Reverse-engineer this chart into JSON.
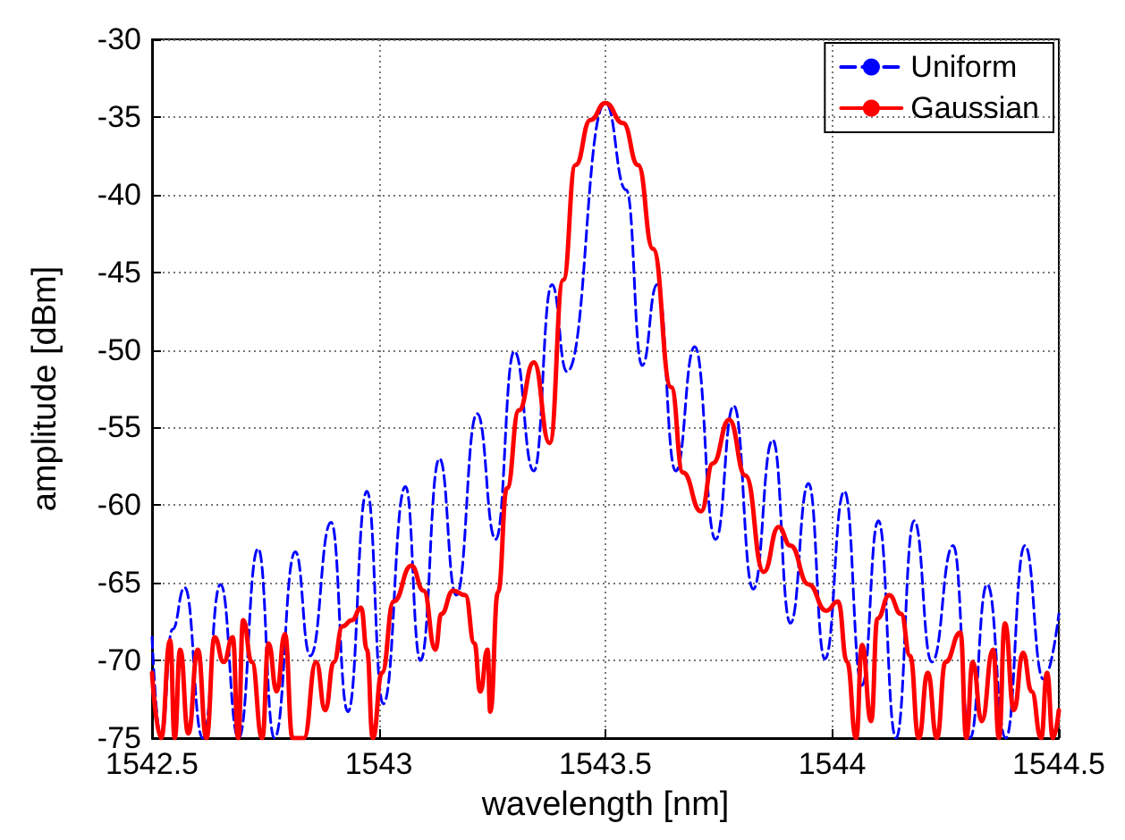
{
  "chart_data": {
    "type": "line",
    "xlabel": "wavelength [nm]",
    "ylabel": "amplitude [dBm]",
    "xlim": [
      1542.5,
      1544.5
    ],
    "xticks": [
      1542.5,
      1543,
      1543.5,
      1544,
      1544.5
    ],
    "ylim": [
      -75,
      -30
    ],
    "yticks": [
      -75,
      -70,
      -65,
      -60,
      -55,
      -50,
      -45,
      -40,
      -35,
      -30
    ],
    "grid": true,
    "legend": "top right",
    "marker": "none",
    "series": [
      {
        "name": "Uniform",
        "color": "#0000ff",
        "line_style": "dashed",
        "x": [
          1542.5,
          1542.52,
          1542.545,
          1542.572,
          1542.612,
          1542.651,
          1542.691,
          1542.734,
          1542.77,
          1542.816,
          1542.849,
          1542.895,
          1542.932,
          1542.974,
          1543.01,
          1543.059,
          1543.092,
          1543.134,
          1543.171,
          1543.217,
          1543.258,
          1543.299,
          1543.342,
          1543.382,
          1543.415,
          1543.5,
          1543.546,
          1543.581,
          1543.614,
          1543.655,
          1543.697,
          1543.743,
          1543.783,
          1543.826,
          1543.869,
          1543.908,
          1543.948,
          1543.984,
          1544.027,
          1544.066,
          1544.102,
          1544.141,
          1544.181,
          1544.22,
          1544.267,
          1544.304,
          1544.342,
          1544.383,
          1544.425,
          1544.466,
          1544.5
        ],
        "values": [
          -68.5,
          -75,
          -68,
          -65.3,
          -75,
          -65.1,
          -75,
          -62.8,
          -75,
          -63,
          -69.7,
          -61.1,
          -73.3,
          -59.1,
          -72.8,
          -58.8,
          -70,
          -57,
          -65.8,
          -54.1,
          -62.2,
          -50.1,
          -57.8,
          -45.8,
          -51.4,
          -34.1,
          -39.7,
          -51,
          -45.8,
          -57.8,
          -49.8,
          -62.2,
          -53.6,
          -65.4,
          -55.8,
          -67.6,
          -58.6,
          -69.9,
          -59.1,
          -71.6,
          -61,
          -75,
          -61,
          -70.1,
          -62.6,
          -75,
          -65.1,
          -75,
          -62.6,
          -71.2,
          -67
        ]
      },
      {
        "name": "Gaussian",
        "color": "#ff0000",
        "line_style": "solid",
        "x": [
          1542.5,
          1542.52,
          1542.54,
          1542.55,
          1542.562,
          1542.58,
          1542.601,
          1542.62,
          1542.638,
          1542.658,
          1542.678,
          1542.69,
          1542.701,
          1542.72,
          1542.743,
          1542.757,
          1542.775,
          1542.793,
          1542.81,
          1542.835,
          1542.862,
          1542.882,
          1542.901,
          1542.92,
          1542.941,
          1542.961,
          1542.974,
          1542.987,
          1543.007,
          1543.033,
          1543.072,
          1543.099,
          1543.125,
          1543.138,
          1543.164,
          1543.191,
          1543.211,
          1543.224,
          1543.24,
          1543.246,
          1543.263,
          1543.283,
          1543.309,
          1543.342,
          1543.377,
          1543.407,
          1543.434,
          1543.467,
          1543.5,
          1543.539,
          1543.572,
          1543.605,
          1543.645,
          1543.671,
          1543.711,
          1543.737,
          1543.773,
          1543.809,
          1543.849,
          1543.882,
          1543.908,
          1543.948,
          1543.987,
          1544.013,
          1544.033,
          1544.053,
          1544.066,
          1544.086,
          1544.1,
          1544.126,
          1544.152,
          1544.172,
          1544.191,
          1544.211,
          1544.231,
          1544.25,
          1544.283,
          1544.296,
          1544.31,
          1544.33,
          1544.355,
          1544.368,
          1544.381,
          1544.401,
          1544.421,
          1544.44,
          1544.461,
          1544.474,
          1544.487,
          1544.5
        ],
        "values": [
          -70.8,
          -75,
          -68.7,
          -75,
          -69.3,
          -74.7,
          -69.3,
          -75,
          -68.5,
          -70.1,
          -68.5,
          -75,
          -67.4,
          -70.1,
          -75,
          -68.9,
          -72,
          -68.3,
          -75,
          -75,
          -70.1,
          -73.2,
          -70.1,
          -67.8,
          -67.4,
          -66.6,
          -69.3,
          -75,
          -70.8,
          -66.2,
          -63.9,
          -65.5,
          -69.3,
          -67,
          -65.5,
          -65.8,
          -68.9,
          -72,
          -69.3,
          -73.3,
          -65.6,
          -58.9,
          -53.9,
          -50.8,
          -56,
          -45.5,
          -38.1,
          -35.2,
          -34.1,
          -35.4,
          -38.1,
          -43.5,
          -52.4,
          -57.9,
          -60.4,
          -57.3,
          -54.5,
          -58.1,
          -64.3,
          -61.4,
          -62.6,
          -65.1,
          -66.8,
          -66.2,
          -70.1,
          -75,
          -69,
          -73.9,
          -67.3,
          -65.8,
          -67,
          -69.7,
          -75,
          -70.8,
          -75,
          -70.1,
          -68.2,
          -75,
          -70.1,
          -73.9,
          -69.3,
          -75,
          -67.6,
          -73.2,
          -69.5,
          -72,
          -75,
          -70.8,
          -75,
          -73.2
        ]
      }
    ]
  }
}
